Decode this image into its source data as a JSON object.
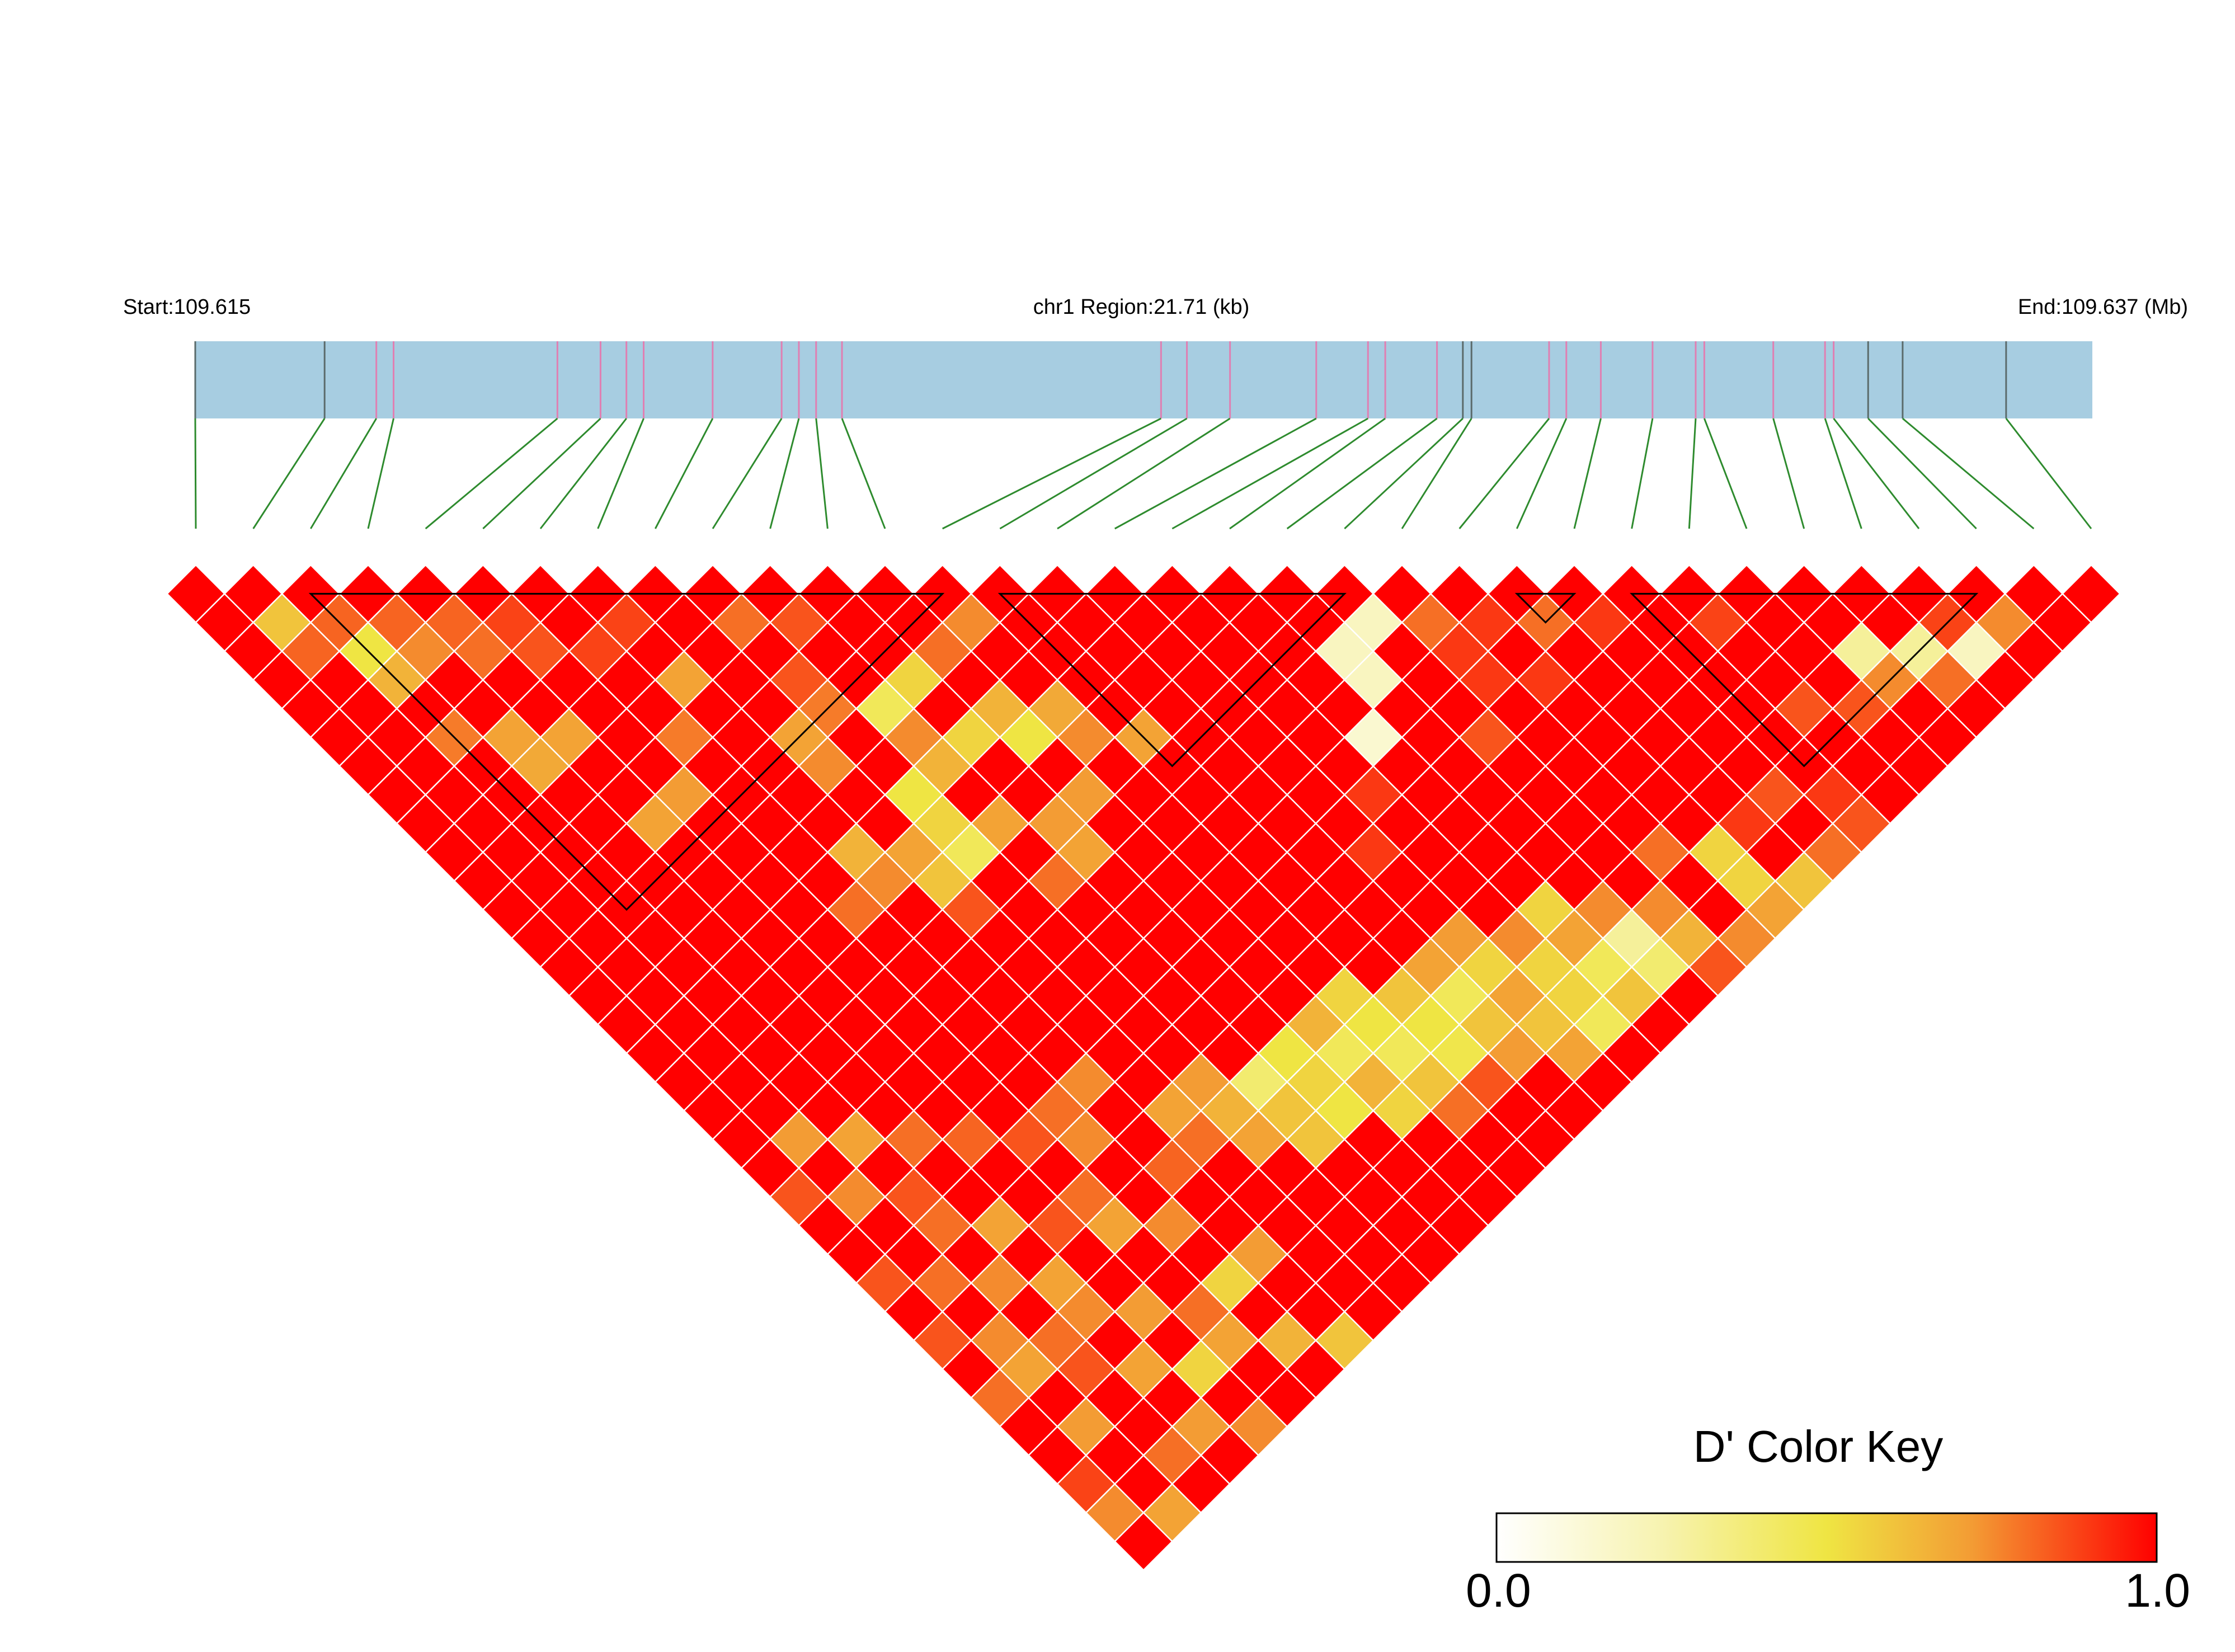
{
  "chart_data": {
    "type": "heatmap",
    "title": "",
    "start_label": "Start:109.615",
    "region_label": "chr1 Region:21.71 (kb)",
    "end_label": "End:109.637 (Mb)",
    "legend": {
      "title": "D' Color Key",
      "min_label": "0.0",
      "max_label": "1.0",
      "range": [
        0,
        1
      ],
      "placement": "bottom-right",
      "colors": [
        "#ffffff",
        "#f0e442",
        "#f39c34",
        "#ff0000"
      ]
    },
    "n_snps": 34,
    "region_start_mb": 109.615,
    "region_end_mb": 109.637,
    "snp_positions_mb": [
      109.615,
      109.6165,
      109.6171,
      109.6173,
      109.6192,
      109.6197,
      109.62,
      109.6202,
      109.621,
      109.6218,
      109.622,
      109.6222,
      109.6225,
      109.6262,
      109.6265,
      109.627,
      109.628,
      109.6286,
      109.6288,
      109.6294,
      109.6297,
      109.6298,
      109.6307,
      109.6309,
      109.6313,
      109.6319,
      109.6324,
      109.6325,
      109.6333,
      109.6339,
      109.634,
      109.6344,
      109.6348,
      109.636
    ],
    "snp_line_types": [
      "gray",
      "gray",
      "pink",
      "pink",
      "pink",
      "pink",
      "pink",
      "pink",
      "pink",
      "pink",
      "pink",
      "pink",
      "pink",
      "pink",
      "pink",
      "pink",
      "pink",
      "pink",
      "pink",
      "pink",
      "gray",
      "gray",
      "pink",
      "pink",
      "pink",
      "pink",
      "pink",
      "pink",
      "pink",
      "pink",
      "pink",
      "gray",
      "gray",
      "gray"
    ],
    "haplotype_blocks": [
      [
        2,
        13
      ],
      [
        14,
        20
      ],
      [
        23,
        24
      ],
      [
        25,
        31
      ]
    ],
    "default_dprime": 1.0,
    "dprime_overrides": [
      [
        1,
        2,
        0.6
      ],
      [
        1,
        3,
        0.82
      ],
      [
        2,
        3,
        0.82
      ],
      [
        5,
        6,
        0.88
      ],
      [
        3,
        4,
        0.82
      ],
      [
        4,
        5,
        0.82
      ],
      [
        5,
        7,
        0.85
      ],
      [
        6,
        8,
        0.88
      ],
      [
        7,
        8,
        0.88
      ],
      [
        2,
        4,
        0.5
      ],
      [
        2,
        5,
        0.65
      ],
      [
        3,
        5,
        0.75
      ],
      [
        4,
        6,
        0.8
      ],
      [
        2,
        7,
        0.78
      ],
      [
        3,
        8,
        0.7
      ],
      [
        3,
        9,
        0.68
      ],
      [
        4,
        9,
        0.7
      ],
      [
        9,
        10,
        0.8
      ],
      [
        10,
        11,
        0.85
      ],
      [
        9,
        12,
        0.85
      ],
      [
        7,
        10,
        0.7
      ],
      [
        6,
        11,
        0.78
      ],
      [
        5,
        12,
        0.72
      ],
      [
        4,
        12,
        0.7
      ],
      [
        13,
        14,
        0.75
      ],
      [
        12,
        14,
        0.8
      ],
      [
        11,
        14,
        0.55
      ],
      [
        10,
        14,
        0.45
      ],
      [
        10,
        15,
        0.75
      ],
      [
        11,
        16,
        0.55
      ],
      [
        12,
        17,
        0.5
      ],
      [
        12,
        16,
        0.65
      ],
      [
        13,
        17,
        0.68
      ],
      [
        9,
        13,
        0.78
      ],
      [
        8,
        13,
        0.7
      ],
      [
        8,
        14,
        0.75
      ],
      [
        13,
        18,
        0.75
      ],
      [
        14,
        19,
        0.7
      ],
      [
        19,
        21,
        0.2
      ],
      [
        20,
        21,
        0.2
      ],
      [
        19,
        22,
        0.2
      ],
      [
        18,
        23,
        0.15
      ],
      [
        21,
        22,
        0.8
      ],
      [
        21,
        23,
        0.9
      ],
      [
        22,
        23,
        0.9
      ],
      [
        22,
        25,
        0.9
      ],
      [
        23,
        24,
        0.8
      ],
      [
        24,
        25,
        0.9
      ],
      [
        26,
        27,
        0.88
      ],
      [
        30,
        31,
        0.88
      ],
      [
        29,
        31,
        0.3
      ],
      [
        30,
        32,
        0.2
      ],
      [
        31,
        32,
        0.75
      ],
      [
        29,
        32,
        0.8
      ],
      [
        28,
        30,
        0.3
      ],
      [
        28,
        31,
        0.75
      ],
      [
        27,
        31,
        0.85
      ],
      [
        26,
        30,
        0.85
      ],
      [
        25,
        32,
        0.9
      ],
      [
        24,
        31,
        0.85
      ],
      [
        9,
        16,
        0.5
      ],
      [
        10,
        16,
        0.65
      ],
      [
        8,
        17,
        0.7
      ],
      [
        8,
        18,
        0.6
      ],
      [
        9,
        18,
        0.45
      ],
      [
        9,
        17,
        0.55
      ],
      [
        10,
        18,
        0.7
      ],
      [
        11,
        19,
        0.72
      ],
      [
        7,
        16,
        0.65
      ],
      [
        7,
        17,
        0.75
      ],
      [
        6,
        17,
        0.8
      ],
      [
        8,
        19,
        0.85
      ],
      [
        12,
        19,
        0.72
      ],
      [
        10,
        20,
        0.8
      ],
      [
        11,
        20,
        0.7
      ],
      [
        17,
        24,
        0.9
      ],
      [
        16,
        25,
        0.9
      ],
      [
        21,
        24,
        0.9
      ],
      [
        20,
        25,
        0.85
      ],
      [
        23,
        31,
        0.9
      ],
      [
        22,
        31,
        0.55
      ],
      [
        21,
        30,
        0.8
      ],
      [
        22,
        32,
        0.55
      ],
      [
        24,
        33,
        0.8
      ],
      [
        25,
        33,
        0.85
      ],
      [
        20,
        33,
        0.85
      ],
      [
        13,
        29,
        0.45
      ],
      [
        14,
        29,
        0.5
      ],
      [
        14,
        30,
        0.48
      ],
      [
        15,
        30,
        0.6
      ],
      [
        10,
        27,
        0.4
      ],
      [
        12,
        28,
        0.45
      ],
      [
        11,
        27,
        0.5
      ],
      [
        13,
        27,
        0.55
      ],
      [
        13,
        28,
        0.5
      ],
      [
        14,
        28,
        0.6
      ],
      [
        12,
        27,
        0.65
      ],
      [
        11,
        28,
        0.55
      ],
      [
        12,
        29,
        0.65
      ],
      [
        15,
        28,
        0.7
      ],
      [
        16,
        28,
        0.72
      ],
      [
        16,
        29,
        0.55
      ],
      [
        17,
        29,
        0.75
      ],
      [
        18,
        29,
        0.55
      ],
      [
        16,
        30,
        0.7
      ],
      [
        15,
        29,
        0.45
      ],
      [
        17,
        30,
        0.55
      ],
      [
        18,
        30,
        0.7
      ],
      [
        19,
        31,
        0.3
      ],
      [
        19,
        30,
        0.75
      ],
      [
        20,
        31,
        0.75
      ],
      [
        14,
        31,
        0.85
      ],
      [
        13,
        31,
        0.8
      ],
      [
        15,
        31,
        0.72
      ],
      [
        16,
        31,
        0.6
      ],
      [
        17,
        31,
        0.55
      ],
      [
        18,
        31,
        0.45
      ],
      [
        18,
        32,
        0.6
      ],
      [
        16,
        32,
        0.7
      ],
      [
        17,
        32,
        0.45
      ],
      [
        19,
        32,
        0.4
      ],
      [
        20,
        32,
        0.65
      ],
      [
        21,
        33,
        0.75
      ],
      [
        22,
        33,
        0.7
      ],
      [
        23,
        33,
        0.6
      ],
      [
        12,
        30,
        0.55
      ],
      [
        13,
        30,
        0.6
      ],
      [
        11,
        29,
        0.5
      ],
      [
        10,
        29,
        0.6
      ],
      [
        9,
        28,
        0.7
      ],
      [
        8,
        27,
        0.8
      ],
      [
        8,
        26,
        0.7
      ],
      [
        10,
        28,
        0.6
      ],
      [
        9,
        26,
        0.72
      ],
      [
        9,
        27,
        0.65
      ],
      [
        7,
        24,
        0.75
      ],
      [
        6,
        24,
        0.8
      ],
      [
        5,
        26,
        0.8
      ],
      [
        4,
        26,
        0.85
      ],
      [
        3,
        25,
        0.7
      ],
      [
        2,
        24,
        0.8
      ],
      [
        2,
        23,
        0.85
      ],
      [
        1,
        22,
        0.75
      ],
      [
        0,
        21,
        0.85
      ],
      [
        1,
        20,
        0.72
      ],
      [
        2,
        21,
        0.7
      ],
      [
        3,
        22,
        0.8
      ],
      [
        4,
        23,
        0.82
      ],
      [
        5,
        24,
        0.85
      ],
      [
        6,
        25,
        0.75
      ],
      [
        7,
        27,
        0.82
      ],
      [
        5,
        27,
        0.7
      ],
      [
        6,
        28,
        0.75
      ],
      [
        4,
        29,
        0.72
      ],
      [
        5,
        30,
        0.8
      ],
      [
        6,
        30,
        0.55
      ],
      [
        7,
        30,
        0.72
      ],
      [
        5,
        31,
        0.7
      ],
      [
        6,
        32,
        0.65
      ],
      [
        7,
        33,
        0.6
      ],
      [
        4,
        31,
        0.55
      ],
      [
        3,
        30,
        0.7
      ],
      [
        3,
        28,
        0.75
      ],
      [
        2,
        28,
        0.8
      ],
      [
        1,
        28,
        0.7
      ],
      [
        2,
        29,
        0.85
      ],
      [
        1,
        30,
        0.72
      ],
      [
        0,
        32,
        0.75
      ],
      [
        0,
        31,
        0.88
      ],
      [
        1,
        33,
        0.7
      ],
      [
        0,
        33,
        1.0
      ],
      [
        2,
        32,
        0.8
      ],
      [
        4,
        33,
        0.75
      ],
      [
        3,
        32,
        0.72
      ],
      [
        0,
        24,
        0.85
      ],
      [
        1,
        25,
        0.8
      ],
      [
        0,
        26,
        0.85
      ],
      [
        1,
        27,
        0.75
      ],
      [
        0,
        28,
        0.8
      ],
      [
        3,
        27,
        0.7
      ],
      [
        2,
        26,
        0.75
      ]
    ]
  }
}
